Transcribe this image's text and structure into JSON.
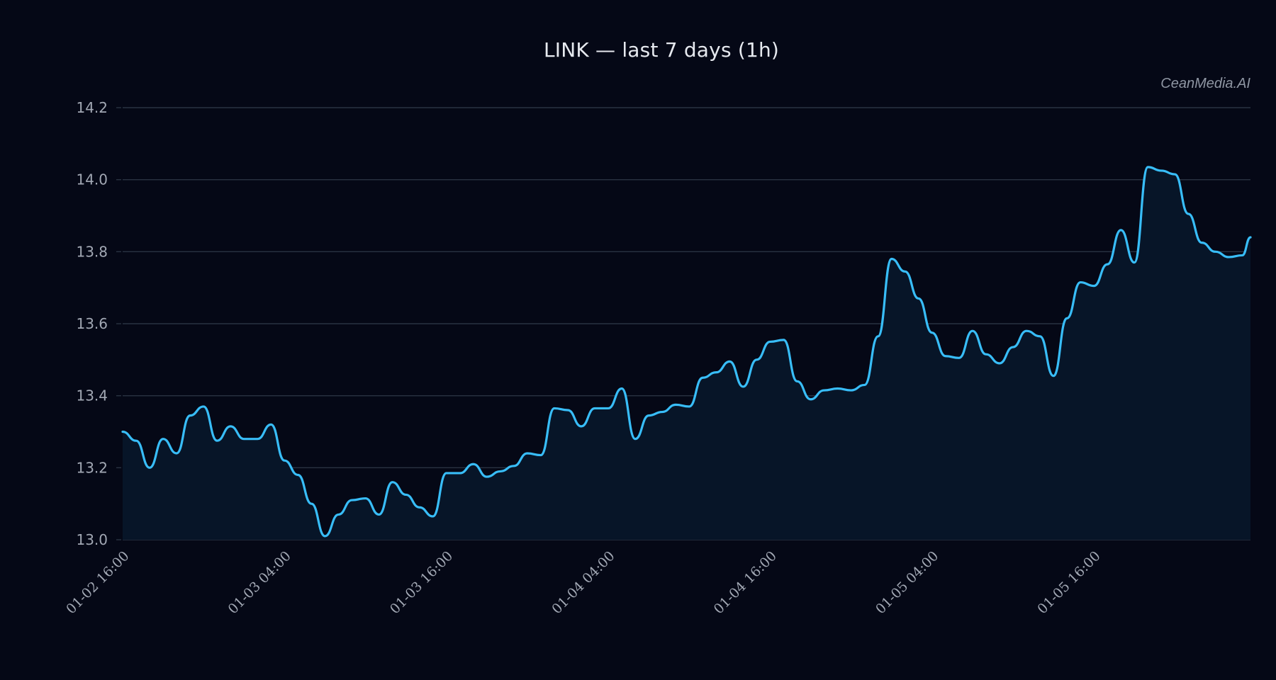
{
  "header": {
    "title": "LINK — last 7 days (1h)",
    "watermark": "CeanMedia.AI"
  },
  "colors": {
    "background": "#050816",
    "line": "#38bdf8",
    "fill": "#071528",
    "grid": "#2a3342",
    "tick_text": "#a2a8b4",
    "title_text": "#e6e9ef",
    "watermark_text": "#8f96a3"
  },
  "chart_data": {
    "type": "area",
    "title": "LINK — last 7 days (1h)",
    "xlabel": "",
    "ylabel": "",
    "ylim": [
      13.0,
      14.2
    ],
    "yticks": [
      13.0,
      13.2,
      13.4,
      13.6,
      13.8,
      14.0,
      14.2
    ],
    "ytick_labels": [
      "13.0",
      "13.2",
      "13.4",
      "13.6",
      "13.8",
      "14.0",
      "14.2"
    ],
    "xtick_labels": [
      "01-02 16:00",
      "01-03 04:00",
      "01-03 16:00",
      "01-04 04:00",
      "01-04 16:00",
      "01-05 04:00",
      "01-05 16:00"
    ],
    "xtick_hours": [
      0,
      12,
      24,
      36,
      48,
      60,
      72
    ],
    "interval": "1h",
    "grid": true,
    "legend": "none",
    "series": [
      {
        "name": "LINK",
        "values": [
          13.3,
          13.275,
          13.2,
          13.28,
          13.24,
          13.345,
          13.37,
          13.275,
          13.315,
          13.28,
          13.28,
          13.32,
          13.22,
          13.18,
          13.1,
          13.01,
          13.07,
          13.11,
          13.115,
          13.07,
          13.16,
          13.125,
          13.09,
          13.065,
          13.185,
          13.185,
          13.21,
          13.175,
          13.19,
          13.205,
          13.24,
          13.235,
          13.365,
          13.36,
          13.315,
          13.365,
          13.365,
          13.42,
          13.28,
          13.345,
          13.355,
          13.375,
          13.37,
          13.45,
          13.465,
          13.495,
          13.425,
          13.5,
          13.55,
          13.555,
          13.44,
          13.39,
          13.415,
          13.42,
          13.415,
          13.43,
          13.565,
          13.78,
          13.745,
          13.67,
          13.575,
          13.51,
          13.505,
          13.58,
          13.515,
          13.49,
          13.535,
          13.58,
          13.565,
          13.455,
          13.615,
          13.715,
          13.705,
          13.765,
          13.86,
          13.77,
          14.035,
          14.025,
          14.015,
          13.905,
          13.825,
          13.8,
          13.785,
          13.79,
          13.84
        ]
      }
    ]
  }
}
